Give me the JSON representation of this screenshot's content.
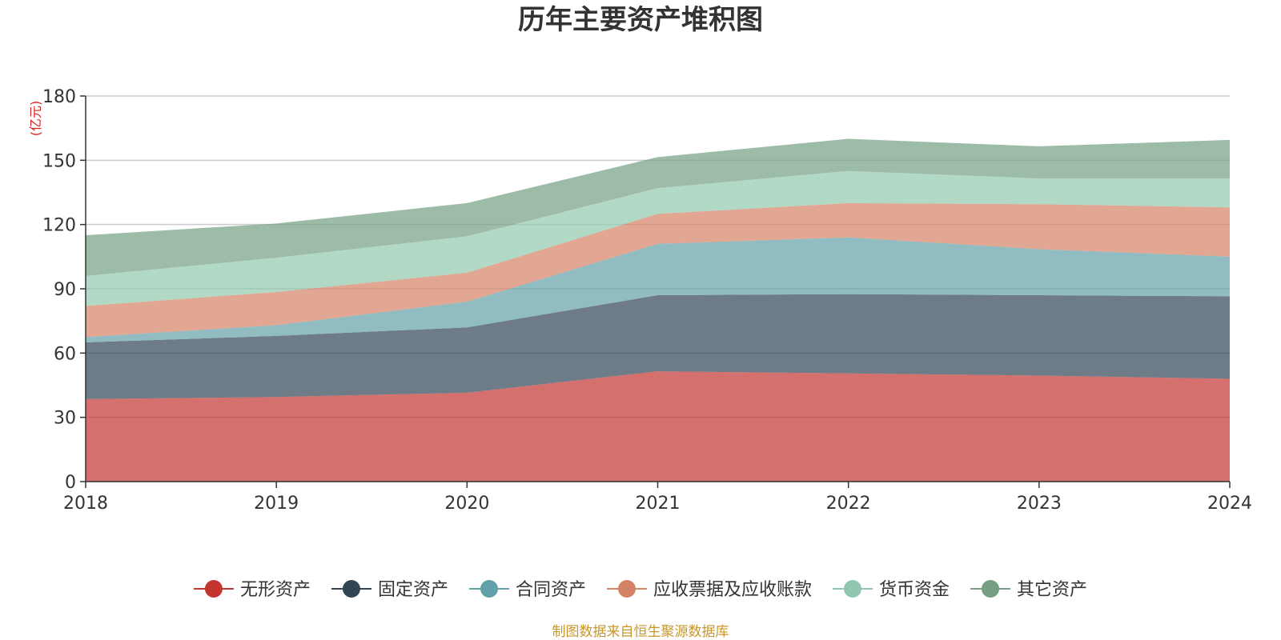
{
  "chart_data": {
    "type": "area",
    "title": "历年主要资产堆积图",
    "unit_label": "(亿元)",
    "source": "制图数据来自恒生聚源数据库",
    "x": [
      "2018",
      "2019",
      "2020",
      "2021",
      "2022",
      "2023",
      "2024"
    ],
    "ylim": [
      0,
      180
    ],
    "yticks": [
      0,
      30,
      60,
      90,
      120,
      150,
      180
    ],
    "grid": true,
    "legend_position": "bottom",
    "stacked": true,
    "series": [
      {
        "name": "无形资产",
        "color": "#c23531",
        "values": [
          38.5,
          39.5,
          41.5,
          51.5,
          50.5,
          49.5,
          48
        ]
      },
      {
        "name": "固定资产",
        "color": "#2f4554",
        "values": [
          26.5,
          28.5,
          30.5,
          35.5,
          37,
          37.5,
          38.5
        ]
      },
      {
        "name": "合同资产",
        "color": "#61a0a8",
        "values": [
          2.5,
          5,
          12,
          24,
          26.5,
          21.5,
          18.5
        ]
      },
      {
        "name": "应收票据及应收账款",
        "color": "#d48265",
        "values": [
          14.5,
          15.5,
          13.5,
          14,
          16,
          21,
          23
        ]
      },
      {
        "name": "货币资金",
        "color": "#91c7ae",
        "values": [
          14,
          16,
          17,
          12,
          15,
          12,
          13.5
        ]
      },
      {
        "name": "其它资产",
        "color": "#749f83",
        "values": [
          19,
          16,
          15.5,
          14.5,
          15,
          15,
          18
        ]
      }
    ]
  }
}
